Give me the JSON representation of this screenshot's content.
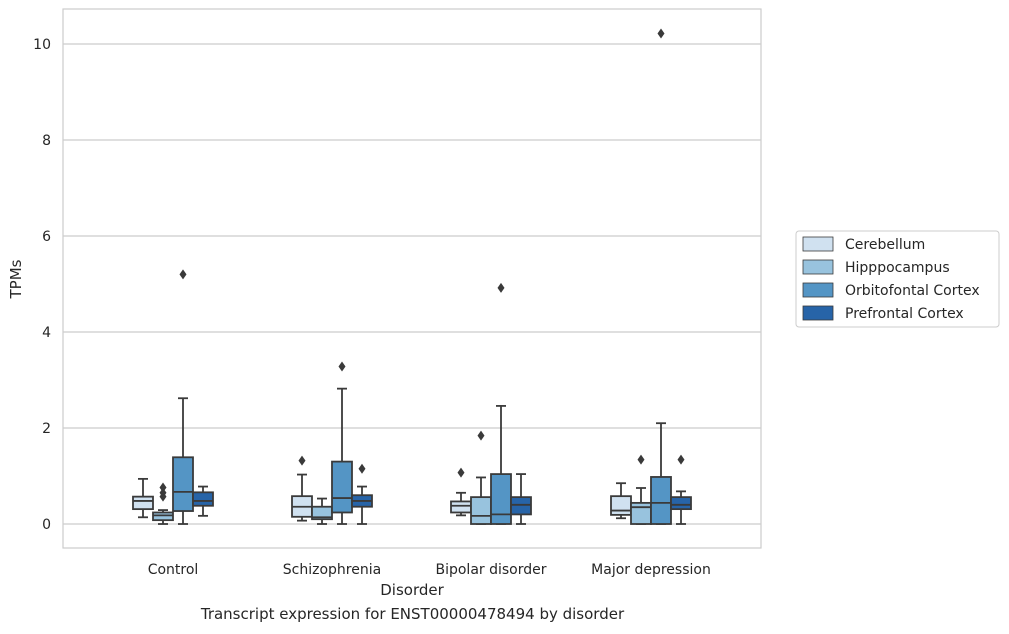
{
  "caption": "Transcript expression for ENST00000478494 by disorder",
  "colors": {
    "grid": "#cccccc",
    "frame": "#cccccc",
    "line": "#3a3a3a",
    "text": "#262626"
  },
  "chart_data": {
    "type": "box",
    "xlabel": "Disorder",
    "ylabel": "TPMs",
    "categories": [
      "Control",
      "Schizophrenia",
      "Bipolar disorder",
      "Major depression"
    ],
    "ylim": [
      -0.5,
      10.7
    ],
    "yticks": [
      0,
      2,
      4,
      6,
      8,
      10
    ],
    "grid": true,
    "legend_position": "right",
    "series": [
      {
        "name": "Cerebellum",
        "color": "#d0e1f0",
        "boxes": [
          {
            "whisker_low": 0.14,
            "q1": 0.31,
            "median": 0.48,
            "q3": 0.57,
            "whisker_high": 0.94,
            "outliers": []
          },
          {
            "whisker_low": 0.07,
            "q1": 0.15,
            "median": 0.36,
            "q3": 0.58,
            "whisker_high": 1.03,
            "outliers": [
              1.32
            ]
          },
          {
            "whisker_low": 0.18,
            "q1": 0.24,
            "median": 0.38,
            "q3": 0.47,
            "whisker_high": 0.65,
            "outliers": [
              1.07
            ]
          },
          {
            "whisker_low": 0.12,
            "q1": 0.19,
            "median": 0.28,
            "q3": 0.58,
            "whisker_high": 0.85,
            "outliers": []
          }
        ]
      },
      {
        "name": "Hipppocampus",
        "color": "#98c3de",
        "boxes": [
          {
            "whisker_low": 0.0,
            "q1": 0.08,
            "median": 0.18,
            "q3": 0.24,
            "whisker_high": 0.29,
            "outliers": [
              0.57,
              0.65,
              0.76
            ]
          },
          {
            "whisker_low": 0.0,
            "q1": 0.1,
            "median": 0.14,
            "q3": 0.36,
            "whisker_high": 0.53,
            "outliers": []
          },
          {
            "whisker_low": 0.0,
            "q1": 0.0,
            "median": 0.17,
            "q3": 0.56,
            "whisker_high": 0.97,
            "outliers": [
              1.84
            ]
          },
          {
            "whisker_low": 0.0,
            "q1": 0.0,
            "median": 0.35,
            "q3": 0.44,
            "whisker_high": 0.75,
            "outliers": [
              1.34
            ]
          }
        ]
      },
      {
        "name": "Orbitofontal Cortex",
        "color": "#5495c5",
        "boxes": [
          {
            "whisker_low": 0.0,
            "q1": 0.27,
            "median": 0.67,
            "q3": 1.39,
            "whisker_high": 2.62,
            "outliers": [
              5.2
            ]
          },
          {
            "whisker_low": 0.0,
            "q1": 0.24,
            "median": 0.54,
            "q3": 1.3,
            "whisker_high": 2.82,
            "outliers": [
              3.28
            ]
          },
          {
            "whisker_low": 0.0,
            "q1": 0.0,
            "median": 0.2,
            "q3": 1.04,
            "whisker_high": 2.46,
            "outliers": [
              4.92
            ]
          },
          {
            "whisker_low": 0.0,
            "q1": 0.0,
            "median": 0.44,
            "q3": 0.98,
            "whisker_high": 2.1,
            "outliers": [
              10.22
            ]
          }
        ]
      },
      {
        "name": "Prefrontal Cortex",
        "color": "#2764a8",
        "boxes": [
          {
            "whisker_low": 0.17,
            "q1": 0.38,
            "median": 0.48,
            "q3": 0.66,
            "whisker_high": 0.78,
            "outliers": []
          },
          {
            "whisker_low": 0.0,
            "q1": 0.36,
            "median": 0.48,
            "q3": 0.6,
            "whisker_high": 0.78,
            "outliers": [
              1.15
            ]
          },
          {
            "whisker_low": 0.0,
            "q1": 0.2,
            "median": 0.4,
            "q3": 0.56,
            "whisker_high": 1.04,
            "outliers": []
          },
          {
            "whisker_low": 0.0,
            "q1": 0.31,
            "median": 0.4,
            "q3": 0.56,
            "whisker_high": 0.68,
            "outliers": [
              1.34
            ]
          }
        ]
      }
    ]
  }
}
